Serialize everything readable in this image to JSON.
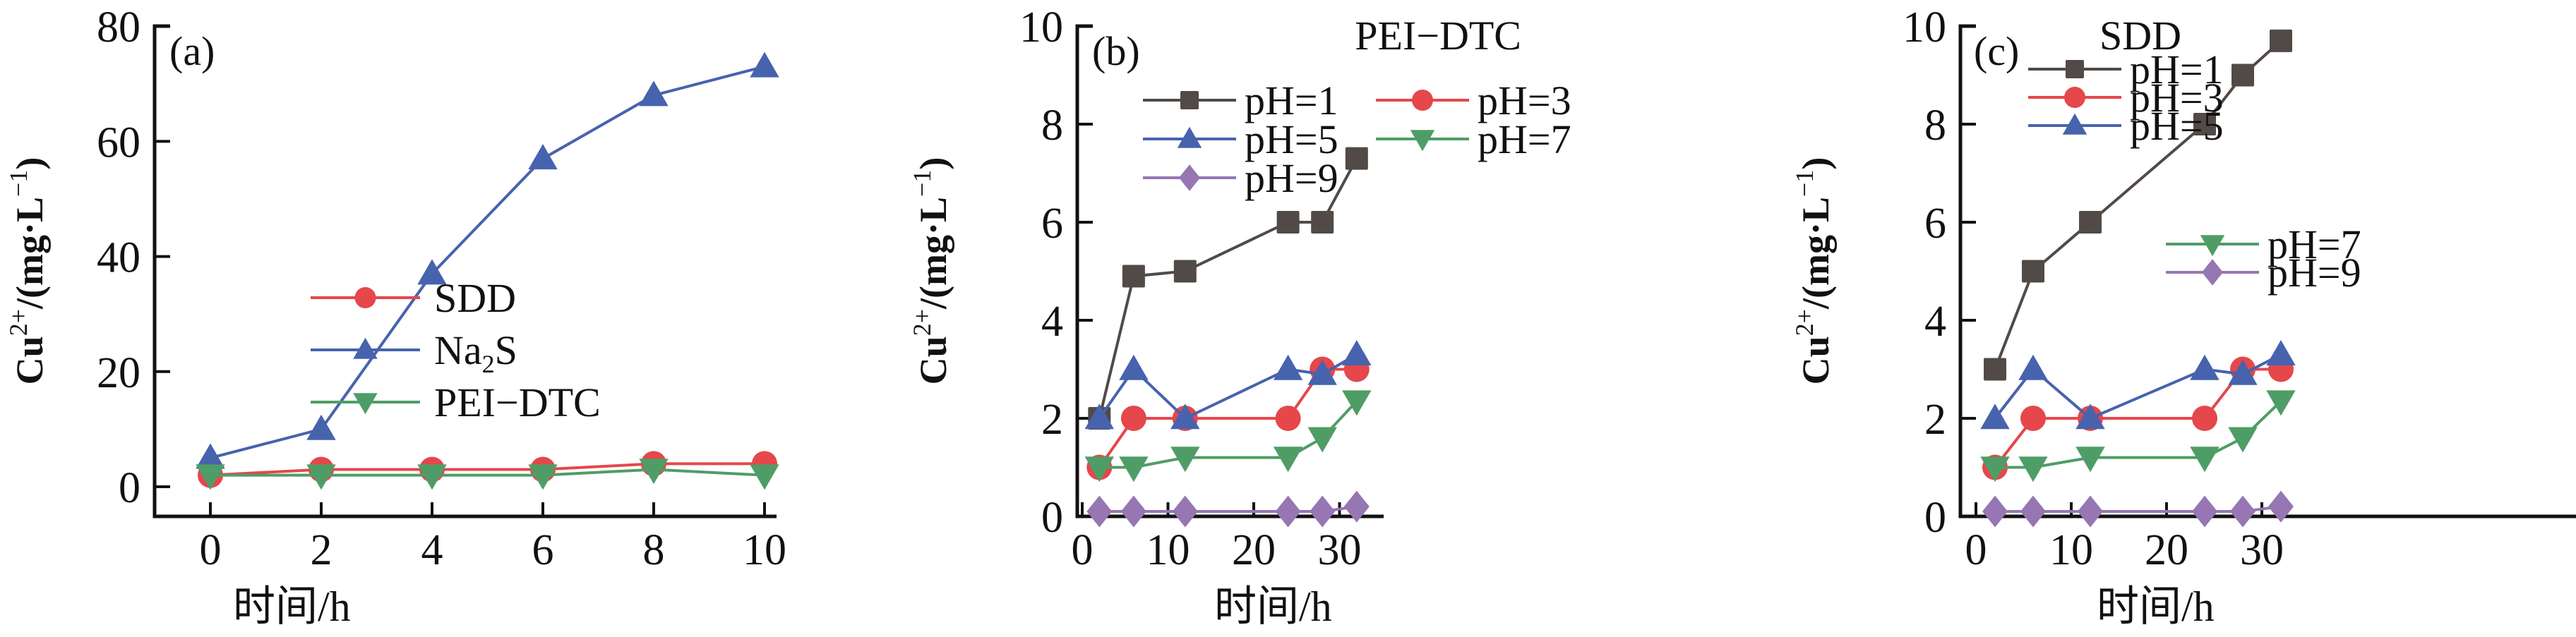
{
  "figure": {
    "panels": [
      "a",
      "b",
      "c"
    ]
  },
  "chart_data": [
    {
      "type": "line",
      "panel_label": "(a)",
      "title": "",
      "xlabel": "时间/h",
      "ylabel": "Cu²⁺/(mg·L⁻¹)",
      "ylabel_parts": {
        "base": "Cu",
        "sup": "2+",
        "mid": "/(mg·L",
        "sup2": "−1",
        "end": ")"
      },
      "xlim": [
        -1,
        10
      ],
      "ylim": [
        -10,
        80
      ],
      "xticks": [
        0,
        2,
        4,
        6,
        8,
        10
      ],
      "yticks": [
        0,
        20,
        40,
        60,
        80
      ],
      "grid": false,
      "legend_position": "center-right",
      "legend_columns": 1,
      "x": [
        0,
        2,
        4,
        6,
        8,
        10
      ],
      "series": [
        {
          "name": "SDD",
          "marker": "circle",
          "color": "#e5474b",
          "values": [
            2,
            3,
            3,
            3,
            4,
            4
          ]
        },
        {
          "name": "Na₂S",
          "name_parts": {
            "base": "Na",
            "sub": "2",
            "end": "S"
          },
          "marker": "triangle-up",
          "color": "#4763ad",
          "values": [
            5,
            10,
            37,
            57,
            68,
            73
          ]
        },
        {
          "name": "PEI−DTC",
          "marker": "triangle-down",
          "color": "#4f9d66",
          "values": [
            2,
            2,
            2,
            2,
            3,
            2
          ]
        }
      ]
    },
    {
      "type": "line",
      "panel_label": "(b)",
      "title": "PEI−DTC",
      "xlabel": "时间/h",
      "ylabel": "Cu²⁺/(mg·L⁻¹)",
      "ylabel_parts": {
        "base": "Cu",
        "sup": "2+",
        "mid": "/(mg·L",
        "sup2": "−1",
        "end": ")"
      },
      "xlim": [
        -2.5,
        35
      ],
      "ylim": [
        0,
        10
      ],
      "xticks": [
        0,
        10,
        20,
        30
      ],
      "yticks": [
        0,
        2,
        4,
        6,
        8,
        10
      ],
      "grid": false,
      "legend_position": "top-left",
      "legend_columns": 2,
      "x": [
        2,
        6,
        12,
        24,
        28,
        32
      ],
      "series": [
        {
          "name": "pH=1",
          "marker": "square",
          "color": "#514a47",
          "values": [
            2.0,
            4.9,
            5.0,
            6.0,
            6.0,
            7.3
          ]
        },
        {
          "name": "pH=3",
          "marker": "circle",
          "color": "#e5474b",
          "values": [
            1.0,
            2.0,
            2.0,
            2.0,
            3.0,
            3.0
          ]
        },
        {
          "name": "pH=5",
          "marker": "triangle-up",
          "color": "#4763ad",
          "values": [
            2.0,
            3.0,
            2.0,
            3.0,
            2.9,
            3.3
          ]
        },
        {
          "name": "pH=7",
          "marker": "triangle-down",
          "color": "#4f9d66",
          "values": [
            1.0,
            1.0,
            1.2,
            1.2,
            1.6,
            2.35
          ]
        },
        {
          "name": "pH=9",
          "marker": "diamond",
          "color": "#9676b3",
          "values": [
            0.1,
            0.1,
            0.1,
            0.1,
            0.1,
            0.2
          ]
        }
      ]
    },
    {
      "type": "line",
      "panel_label": "(c)",
      "title": "SDD",
      "xlabel": "时间/h",
      "ylabel": "Cu²⁺/(mg·L⁻¹)",
      "ylabel_parts": {
        "base": "Cu",
        "sup": "2+",
        "mid": "/(mg·L",
        "sup2": "−1",
        "end": ")"
      },
      "xlim": [
        -2.5,
        35
      ],
      "ylim": [
        0,
        10
      ],
      "xticks": [
        0,
        10,
        20,
        30
      ],
      "yticks": [
        0,
        2,
        4,
        6,
        8,
        10
      ],
      "grid": false,
      "legend_position": "top-left and center-right (split)",
      "legend_columns": 1,
      "x": [
        2,
        6,
        12,
        24,
        28,
        32
      ],
      "series": [
        {
          "name": "pH=1",
          "marker": "square",
          "color": "#514a47",
          "values": [
            3.0,
            5.0,
            6.0,
            8.0,
            9.0,
            9.7
          ]
        },
        {
          "name": "pH=3",
          "marker": "circle",
          "color": "#e5474b",
          "values": [
            1.0,
            2.0,
            2.0,
            2.0,
            3.0,
            3.0
          ]
        },
        {
          "name": "pH=5",
          "marker": "triangle-up",
          "color": "#4763ad",
          "values": [
            2.0,
            3.0,
            2.0,
            3.0,
            2.9,
            3.3
          ]
        },
        {
          "name": "pH=7",
          "marker": "triangle-down",
          "color": "#4f9d66",
          "values": [
            1.0,
            1.0,
            1.2,
            1.2,
            1.6,
            2.35
          ]
        },
        {
          "name": "pH=9",
          "marker": "diamond",
          "color": "#9676b3",
          "values": [
            0.1,
            0.1,
            0.1,
            0.1,
            0.1,
            0.2
          ]
        }
      ]
    }
  ]
}
